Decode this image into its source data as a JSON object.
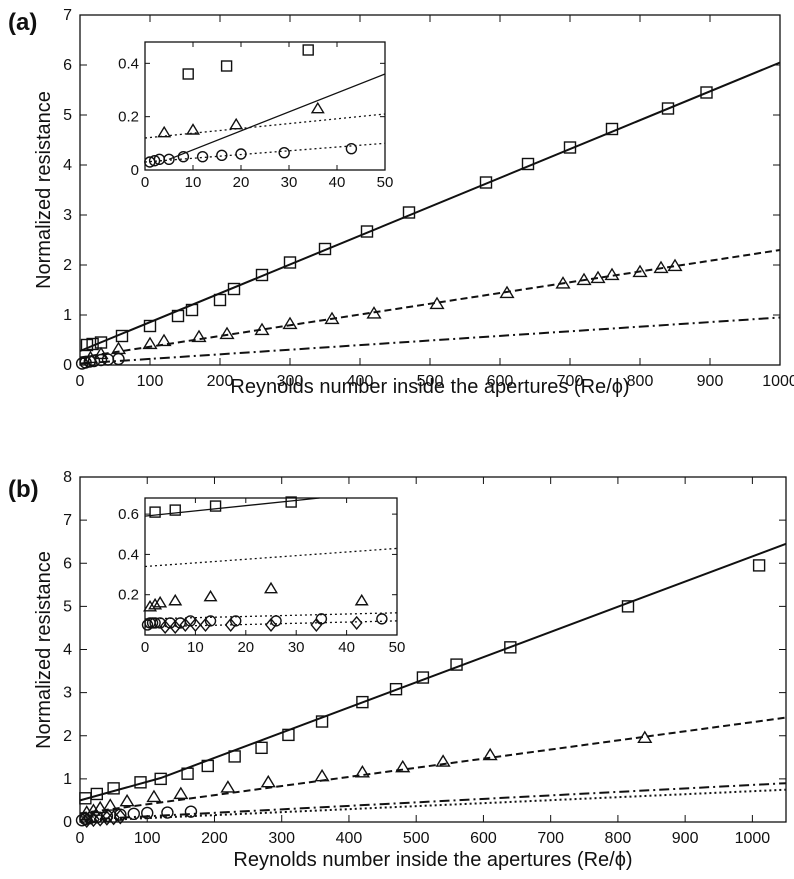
{
  "chart_data": [
    {
      "type": "scatter",
      "panel_label": "(a)",
      "xlabel": "Reynolds number inside the apertures (Re/ϕ)",
      "ylabel": "Normalized resistance",
      "xlim": [
        0,
        1000
      ],
      "ylim": [
        0,
        7
      ],
      "xticks": [
        "0",
        "100",
        "200",
        "300",
        "400",
        "500",
        "600",
        "700",
        "800",
        "900",
        "1000"
      ],
      "yticks": [
        "0",
        "1",
        "2",
        "3",
        "4",
        "5",
        "6",
        "7"
      ],
      "series": [
        {
          "marker": "square",
          "line": "solid",
          "fit": [
            [
              0,
              0.28
            ],
            [
              1000,
              6.05
            ]
          ],
          "x": [
            10,
            18,
            30,
            60,
            100,
            140,
            160,
            200,
            220,
            260,
            300,
            350,
            410,
            470,
            580,
            640,
            700,
            760,
            840,
            895
          ],
          "y": [
            0.4,
            0.42,
            0.45,
            0.58,
            0.78,
            0.98,
            1.1,
            1.3,
            1.52,
            1.8,
            2.05,
            2.32,
            2.67,
            3.05,
            3.65,
            4.02,
            4.35,
            4.72,
            5.13,
            5.45
          ]
        },
        {
          "marker": "triangle",
          "line": "dashed",
          "fit": [
            [
              0,
              0.15
            ],
            [
              1000,
              2.3
            ]
          ],
          "x": [
            15,
            30,
            55,
            100,
            120,
            170,
            210,
            260,
            300,
            360,
            420,
            510,
            610,
            690,
            720,
            740,
            760,
            800,
            830,
            850
          ],
          "y": [
            0.14,
            0.22,
            0.32,
            0.42,
            0.48,
            0.56,
            0.62,
            0.7,
            0.82,
            0.92,
            1.03,
            1.22,
            1.44,
            1.63,
            1.7,
            1.74,
            1.8,
            1.86,
            1.94,
            1.98
          ]
        },
        {
          "marker": "circle",
          "line": "dash-dot",
          "fit": [
            [
              0,
              0.03
            ],
            [
              1000,
              0.95
            ]
          ],
          "x": [
            3,
            8,
            14,
            20,
            30,
            40,
            55
          ],
          "y": [
            0.03,
            0.05,
            0.07,
            0.08,
            0.1,
            0.11,
            0.12
          ]
        }
      ],
      "inset": {
        "xlim": [
          0,
          50
        ],
        "ylim": [
          0,
          0.48
        ],
        "xticks": [
          "0",
          "10",
          "20",
          "30",
          "40",
          "50"
        ],
        "yticks": [
          "0",
          "0.2",
          "0.4"
        ],
        "series": [
          {
            "marker": "square",
            "line": "solid",
            "fit": [
              [
                5,
                0.04
              ],
              [
                50,
                0.36
              ]
            ],
            "x": [
              9,
              17,
              34
            ],
            "y": [
              0.36,
              0.39,
              0.45
            ]
          },
          {
            "marker": "triangle",
            "line": "dotted",
            "fit": [
              [
                0,
                0.12
              ],
              [
                50,
                0.21
              ]
            ],
            "x": [
              4,
              10,
              19,
              36
            ],
            "y": [
              0.14,
              0.15,
              0.17,
              0.23
            ]
          },
          {
            "marker": "circle",
            "line": "dotted",
            "fit": [
              [
                0,
                0.03
              ],
              [
                50,
                0.1
              ]
            ],
            "x": [
              1,
              2,
              3,
              5,
              8,
              12,
              16,
              20,
              29,
              43
            ],
            "y": [
              0.03,
              0.035,
              0.04,
              0.04,
              0.05,
              0.05,
              0.055,
              0.06,
              0.065,
              0.08
            ]
          }
        ]
      }
    },
    {
      "type": "scatter",
      "panel_label": "(b)",
      "xlabel": "Reynolds number inside the apertures (Re/ϕ)",
      "ylabel": "Normalized resistance",
      "xlim": [
        0,
        1050
      ],
      "ylim": [
        0,
        8
      ],
      "xticks": [
        "0",
        "100",
        "200",
        "300",
        "400",
        "500",
        "600",
        "700",
        "800",
        "900",
        "1000"
      ],
      "yticks": [
        "0",
        "1",
        "2",
        "3",
        "4",
        "5",
        "6",
        "7",
        "8"
      ],
      "series": [
        {
          "marker": "square",
          "line": "solid",
          "fit": [
            [
              0,
              0.5
            ],
            [
              120,
              1.02
            ],
            [
              1050,
              6.45
            ]
          ],
          "x": [
            8,
            25,
            50,
            90,
            120,
            160,
            190,
            230,
            270,
            310,
            360,
            420,
            470,
            510,
            560,
            640,
            815,
            1010
          ],
          "y": [
            0.55,
            0.65,
            0.78,
            0.92,
            1.0,
            1.12,
            1.3,
            1.52,
            1.72,
            2.02,
            2.33,
            2.78,
            3.08,
            3.35,
            3.65,
            4.05,
            5.0,
            5.95
          ]
        },
        {
          "marker": "triangle",
          "line": "dashed",
          "fit": [
            [
              0,
              0.2
            ],
            [
              1050,
              2.42
            ]
          ],
          "x": [
            10,
            20,
            30,
            45,
            70,
            110,
            150,
            220,
            280,
            360,
            420,
            480,
            540,
            610,
            840
          ],
          "y": [
            0.22,
            0.26,
            0.32,
            0.38,
            0.48,
            0.58,
            0.65,
            0.8,
            0.92,
            1.06,
            1.15,
            1.27,
            1.4,
            1.55,
            1.95
          ]
        },
        {
          "marker": "circle",
          "line": "dash-dot",
          "fit": [
            [
              0,
              0.05
            ],
            [
              1050,
              0.9
            ]
          ],
          "x": [
            3,
            8,
            15,
            25,
            40,
            60,
            80,
            100,
            130,
            165
          ],
          "y": [
            0.04,
            0.07,
            0.09,
            0.11,
            0.14,
            0.17,
            0.19,
            0.21,
            0.22,
            0.24
          ]
        },
        {
          "marker": "diamond",
          "line": "dotted",
          "fit": [
            [
              0,
              0.02
            ],
            [
              1050,
              0.75
            ]
          ],
          "x": [
            10,
            20,
            30,
            40,
            50,
            60
          ],
          "y": [
            0.04,
            0.06,
            0.07,
            0.09,
            0.1,
            0.12
          ]
        }
      ],
      "inset": {
        "xlim": [
          0,
          50
        ],
        "ylim": [
          0,
          0.68
        ],
        "xticks": [
          "0",
          "10",
          "20",
          "30",
          "40",
          "50"
        ],
        "yticks": [
          "0.2",
          "0.4",
          "0.6"
        ],
        "series": [
          {
            "marker": "square",
            "line": "solid",
            "fit": [
              [
                0,
                0.59
              ],
              [
                50,
                0.72
              ]
            ],
            "x": [
              2,
              6,
              14,
              29
            ],
            "y": [
              0.61,
              0.62,
              0.64,
              0.66
            ]
          },
          {
            "marker": "triangle",
            "line": "dotted",
            "fit": [
              [
                0,
                0.34
              ],
              [
                50,
                0.43
              ]
            ],
            "x": [
              1,
              2,
              3,
              6,
              13,
              25,
              43
            ],
            "y": [
              0.14,
              0.15,
              0.16,
              0.17,
              0.19,
              0.23,
              0.17
            ]
          },
          {
            "marker": "circle",
            "line": "dotted",
            "fit": [
              [
                0,
                0.08
              ],
              [
                50,
                0.11
              ]
            ],
            "x": [
              0.5,
              1,
              1.5,
              2,
              3,
              5,
              7,
              9,
              13,
              18,
              26,
              35,
              47
            ],
            "y": [
              0.05,
              0.06,
              0.06,
              0.06,
              0.06,
              0.06,
              0.06,
              0.07,
              0.07,
              0.07,
              0.07,
              0.08,
              0.08
            ]
          },
          {
            "marker": "diamond",
            "line": "dotted",
            "fit": [
              [
                0,
                0.04
              ],
              [
                50,
                0.07
              ]
            ],
            "x": [
              4,
              6,
              8,
              10,
              12,
              17,
              25,
              34,
              42
            ],
            "y": [
              0.04,
              0.04,
              0.05,
              0.05,
              0.05,
              0.05,
              0.05,
              0.05,
              0.06
            ]
          }
        ]
      }
    }
  ]
}
